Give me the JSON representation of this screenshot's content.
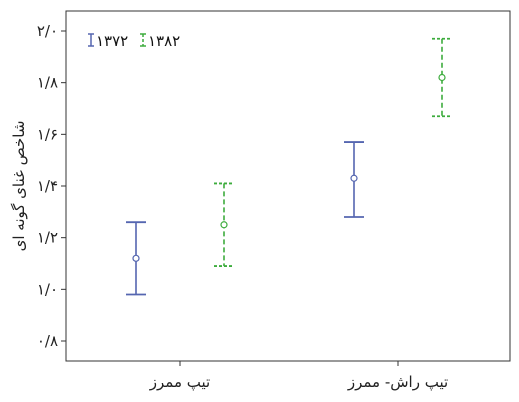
{
  "chart_data": {
    "type": "errorbar",
    "title": "",
    "xlabel": "",
    "ylabel": "شاخص غنای گونه ای",
    "ylim": [
      0.75,
      2.05
    ],
    "yticks": [
      {
        "value": 0.8,
        "label": "۰/۸"
      },
      {
        "value": 1.0,
        "label": "۱/۰"
      },
      {
        "value": 1.2,
        "label": "۱/۲"
      },
      {
        "value": 1.4,
        "label": "۱/۴"
      },
      {
        "value": 1.6,
        "label": "۱/۶"
      },
      {
        "value": 1.8,
        "label": "۱/۸"
      },
      {
        "value": 2.0,
        "label": "۲/۰"
      }
    ],
    "categories": [
      "تیپ ممرز",
      "تیپ راش- ممرز"
    ],
    "legend_position": "top-left",
    "series": [
      {
        "name": "۱۳۷۲",
        "color": "#5566b0",
        "dash": "solid",
        "points": [
          {
            "category": "تیپ ممرز",
            "mean": 1.12,
            "lower": 0.98,
            "upper": 1.26
          },
          {
            "category": "تیپ راش- ممرز",
            "mean": 1.43,
            "lower": 1.28,
            "upper": 1.57
          }
        ]
      },
      {
        "name": "۱۳۸۲",
        "color": "#3dac3d",
        "dash": "dashed",
        "points": [
          {
            "category": "تیپ ممرز",
            "mean": 1.25,
            "lower": 1.09,
            "upper": 1.41
          },
          {
            "category": "تیپ راش- ممرز",
            "mean": 1.82,
            "lower": 1.67,
            "upper": 1.97
          }
        ]
      }
    ]
  }
}
